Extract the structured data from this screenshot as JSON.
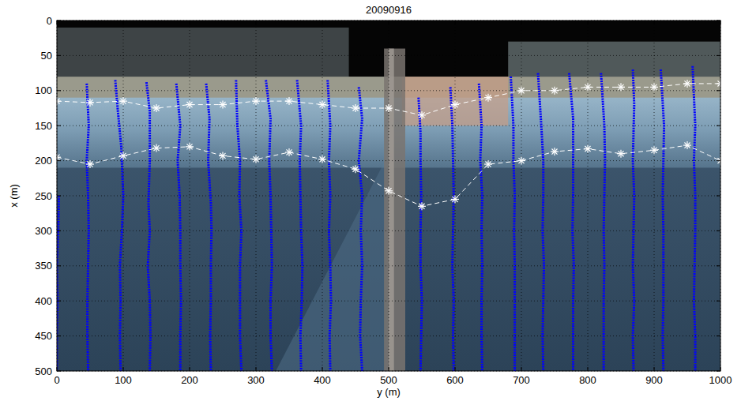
{
  "chart_data": {
    "type": "line",
    "title": "20090916",
    "x_label": "y (m)",
    "y_label": "x (m)",
    "xlim": [
      0,
      1000
    ],
    "ylim": [
      500,
      0
    ],
    "xticks": [
      0,
      100,
      200,
      300,
      400,
      500,
      600,
      700,
      800,
      900,
      1000
    ],
    "yticks": [
      0,
      50,
      100,
      150,
      200,
      250,
      300,
      350,
      400,
      450,
      500
    ],
    "grid": true,
    "series": [
      {
        "color": "#ffffff",
        "line_style": "dashed",
        "marker": "asterisk",
        "x": [
          0,
          50,
          100,
          150,
          200,
          250,
          300,
          350,
          400,
          450,
          500,
          550,
          600,
          650,
          700,
          750,
          800,
          850,
          900,
          950,
          1000
        ],
        "values": [
          115,
          117,
          115,
          125,
          120,
          120,
          115,
          115,
          120,
          125,
          125,
          135,
          120,
          110,
          100,
          100,
          95,
          95,
          95,
          90,
          90
        ]
      },
      {
        "color": "#ffffff",
        "line_style": "dashed",
        "marker": "asterisk",
        "x": [
          0,
          50,
          100,
          150,
          200,
          250,
          300,
          350,
          400,
          450,
          500,
          550,
          600,
          650,
          700,
          750,
          800,
          850,
          900,
          950,
          1000
        ],
        "values": [
          195,
          205,
          193,
          182,
          180,
          193,
          198,
          188,
          198,
          212,
          243,
          265,
          255,
          205,
          200,
          187,
          183,
          190,
          185,
          178,
          200
        ]
      },
      {
        "color": "#0000ff",
        "line_style": "dotted",
        "marker": "none",
        "x": [
          3,
          2,
          0,
          1,
          0,
          0
        ],
        "values": [
          250,
          300,
          350,
          400,
          450,
          500
        ]
      },
      {
        "color": "#0000ff",
        "line_style": "dotted",
        "marker": "none",
        "x": [
          45,
          48,
          45,
          47,
          48,
          47,
          46,
          46,
          47
        ],
        "values": [
          90,
          150,
          200,
          250,
          300,
          350,
          400,
          450,
          500
        ]
      },
      {
        "color": "#0000ff",
        "line_style": "dotted",
        "marker": "none",
        "x": [
          88,
          92,
          97,
          100,
          98,
          95,
          96,
          95,
          96
        ],
        "values": [
          85,
          130,
          180,
          250,
          300,
          350,
          400,
          450,
          500
        ]
      },
      {
        "color": "#0000ff",
        "line_style": "dotted",
        "marker": "none",
        "x": [
          135,
          140,
          140,
          138,
          140,
          137,
          140,
          141,
          140
        ],
        "values": [
          88,
          130,
          200,
          260,
          300,
          350,
          400,
          450,
          500
        ]
      },
      {
        "color": "#0000ff",
        "line_style": "dotted",
        "marker": "none",
        "x": [
          180,
          186,
          182,
          185,
          186,
          186,
          187,
          186,
          186
        ],
        "values": [
          90,
          150,
          200,
          250,
          300,
          350,
          400,
          450,
          500
        ]
      },
      {
        "color": "#0000ff",
        "line_style": "dotted",
        "marker": "none",
        "x": [
          225,
          230,
          228,
          232,
          233,
          232,
          232,
          231,
          232
        ],
        "values": [
          90,
          140,
          200,
          260,
          300,
          350,
          400,
          450,
          500
        ]
      },
      {
        "color": "#0000ff",
        "line_style": "dotted",
        "marker": "none",
        "x": [
          270,
          272,
          276,
          275,
          278,
          276,
          276,
          276,
          278
        ],
        "values": [
          85,
          150,
          200,
          250,
          300,
          350,
          400,
          450,
          500
        ]
      },
      {
        "color": "#0000ff",
        "line_style": "dotted",
        "marker": "none",
        "x": [
          315,
          322,
          320,
          322,
          323,
          324,
          322,
          322,
          324
        ],
        "values": [
          85,
          140,
          200,
          250,
          300,
          350,
          400,
          450,
          500
        ]
      },
      {
        "color": "#0000ff",
        "line_style": "dotted",
        "marker": "none",
        "x": [
          362,
          368,
          366,
          367,
          368,
          370,
          369,
          367,
          368
        ],
        "values": [
          85,
          150,
          200,
          250,
          300,
          350,
          400,
          450,
          500
        ]
      },
      {
        "color": "#0000ff",
        "line_style": "dotted",
        "marker": "none",
        "x": [
          408,
          412,
          410,
          412,
          410,
          412,
          413,
          411,
          412
        ],
        "values": [
          85,
          150,
          200,
          250,
          300,
          350,
          400,
          450,
          500
        ]
      },
      {
        "color": "#0000ff",
        "line_style": "dotted",
        "marker": "none",
        "x": [
          455,
          460,
          455,
          460,
          458,
          460,
          458,
          457,
          460
        ],
        "values": [
          95,
          140,
          200,
          250,
          300,
          350,
          400,
          450,
          500
        ]
      },
      {
        "color": "#0000ff",
        "line_style": "dotted",
        "marker": "none",
        "x": [
          545,
          548,
          548,
          549,
          548,
          548,
          550,
          549,
          548
        ],
        "values": [
          110,
          160,
          200,
          250,
          300,
          350,
          400,
          450,
          500
        ]
      },
      {
        "color": "#0000ff",
        "line_style": "dotted",
        "marker": "none",
        "x": [
          593,
          596,
          597,
          598,
          597,
          596,
          598,
          597,
          598
        ],
        "values": [
          95,
          150,
          200,
          250,
          300,
          350,
          400,
          450,
          500
        ]
      },
      {
        "color": "#0000ff",
        "line_style": "dotted",
        "marker": "none",
        "x": [
          636,
          640,
          638,
          641,
          640,
          641,
          640,
          640,
          641
        ],
        "values": [
          90,
          150,
          200,
          250,
          300,
          350,
          400,
          450,
          500
        ]
      },
      {
        "color": "#0000ff",
        "line_style": "dotted",
        "marker": "none",
        "x": [
          684,
          688,
          688,
          690,
          689,
          690,
          690,
          690,
          690
        ],
        "values": [
          80,
          150,
          200,
          250,
          300,
          350,
          400,
          450,
          500
        ]
      },
      {
        "color": "#0000ff",
        "line_style": "dotted",
        "marker": "none",
        "x": [
          725,
          730,
          733,
          733,
          732,
          734,
          733,
          732,
          733
        ],
        "values": [
          75,
          150,
          200,
          250,
          300,
          350,
          400,
          450,
          500
        ]
      },
      {
        "color": "#0000ff",
        "line_style": "dotted",
        "marker": "none",
        "x": [
          772,
          778,
          778,
          778,
          777,
          779,
          778,
          778,
          778
        ],
        "values": [
          75,
          140,
          200,
          250,
          300,
          350,
          400,
          450,
          500
        ]
      },
      {
        "color": "#0000ff",
        "line_style": "dotted",
        "marker": "none",
        "x": [
          820,
          825,
          826,
          825,
          824,
          825,
          824,
          824,
          824
        ],
        "values": [
          75,
          150,
          200,
          250,
          300,
          350,
          400,
          450,
          500
        ]
      },
      {
        "color": "#0000ff",
        "line_style": "dotted",
        "marker": "none",
        "x": [
          868,
          870,
          868,
          870,
          869,
          868,
          870,
          868,
          869
        ],
        "values": [
          70,
          120,
          200,
          250,
          300,
          350,
          400,
          450,
          500
        ]
      },
      {
        "color": "#0000ff",
        "line_style": "dotted",
        "marker": "none",
        "x": [
          910,
          915,
          914,
          913,
          914,
          914,
          914,
          913,
          914
        ],
        "values": [
          70,
          150,
          200,
          250,
          300,
          350,
          400,
          450,
          500
        ]
      },
      {
        "color": "#0000ff",
        "line_style": "dotted",
        "marker": "none",
        "x": [
          958,
          962,
          960,
          962,
          962,
          961,
          960,
          962,
          962
        ],
        "values": [
          65,
          150,
          200,
          250,
          300,
          350,
          400,
          450,
          500
        ]
      }
    ]
  }
}
